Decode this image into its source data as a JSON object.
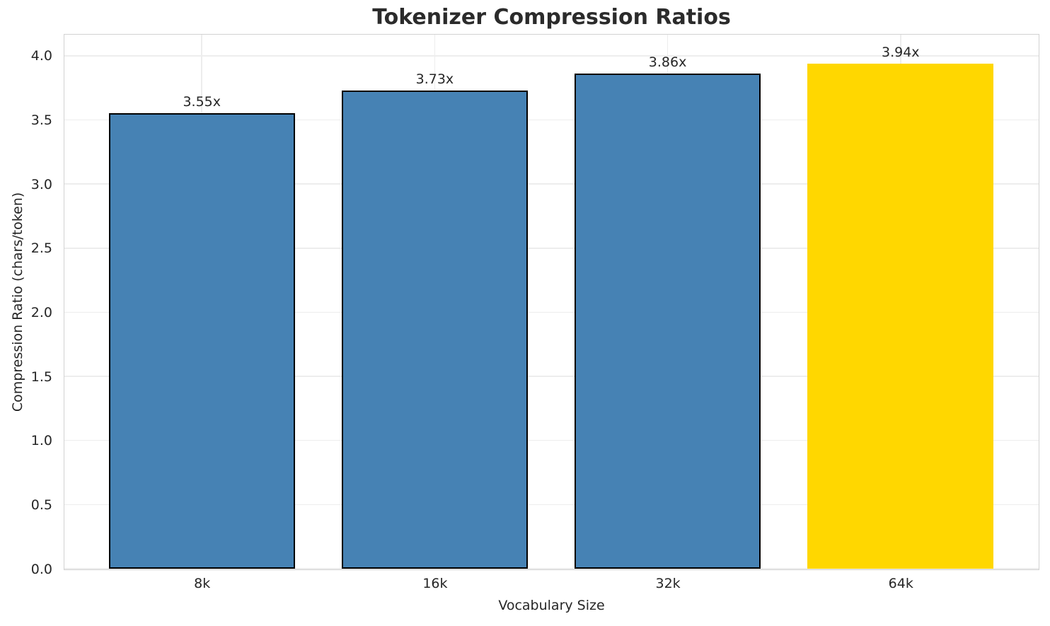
{
  "chart_data": {
    "type": "bar",
    "title": "Tokenizer Compression Ratios",
    "xlabel": "Vocabulary Size",
    "ylabel": "Compression Ratio (chars/token)",
    "categories": [
      "8k",
      "16k",
      "32k",
      "64k"
    ],
    "values": [
      3.55,
      3.73,
      3.86,
      3.94
    ],
    "bars": [
      {
        "category": "8k",
        "value": 3.55,
        "label": "3.55x",
        "color": "#4682B4",
        "edge_color": "#000000"
      },
      {
        "category": "16k",
        "value": 3.73,
        "label": "3.73x",
        "color": "#4682B4",
        "edge_color": "#000000"
      },
      {
        "category": "32k",
        "value": 3.86,
        "label": "3.86x",
        "color": "#4682B4",
        "edge_color": "#000000"
      },
      {
        "category": "64k",
        "value": 3.94,
        "label": "3.94x",
        "color": "#FFD700",
        "edge_color": "none"
      }
    ],
    "ytick_labels": [
      "0.0",
      "0.5",
      "1.0",
      "1.5",
      "2.0",
      "2.5",
      "3.0",
      "3.5",
      "4.0"
    ],
    "yticks": [
      0.0,
      0.5,
      1.0,
      1.5,
      2.0,
      2.5,
      3.0,
      3.5,
      4.0
    ],
    "ylim": [
      0,
      4.165
    ],
    "xlim": [
      -0.59,
      3.59
    ],
    "bar_width": 0.8,
    "grid": "both",
    "legend": null,
    "colors": {
      "bar_default": "#4682B4",
      "bar_highlight": "#FFD700",
      "bar_edge": "#000000",
      "grid": "#ededed",
      "spine": "#d2d2d2",
      "text": "#262626"
    }
  }
}
